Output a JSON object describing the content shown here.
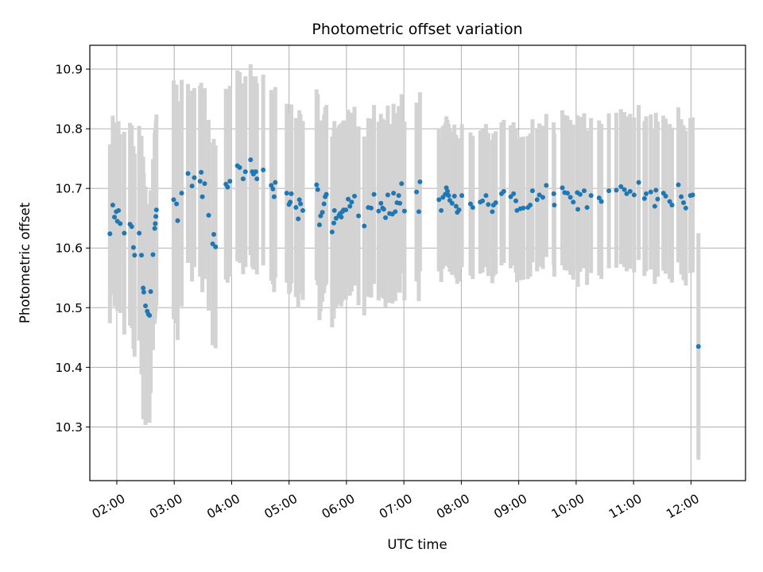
{
  "chart_data": {
    "type": "scatter",
    "title": "Photometric offset variation",
    "xlabel": "UTC time",
    "ylabel": "Photometric offset",
    "x_unit": "hours UTC",
    "xlim": [
      1.53,
      12.95
    ],
    "ylim": [
      10.21,
      10.94
    ],
    "x_ticks": [
      {
        "value": 2,
        "label": "02:00"
      },
      {
        "value": 3,
        "label": "03:00"
      },
      {
        "value": 4,
        "label": "04:00"
      },
      {
        "value": 5,
        "label": "05:00"
      },
      {
        "value": 6,
        "label": "06:00"
      },
      {
        "value": 7,
        "label": "07:00"
      },
      {
        "value": 8,
        "label": "08:00"
      },
      {
        "value": 9,
        "label": "09:00"
      },
      {
        "value": 10,
        "label": "10:00"
      },
      {
        "value": 11,
        "label": "11:00"
      },
      {
        "value": 12,
        "label": "12:00"
      }
    ],
    "y_ticks": [
      {
        "value": 10.3,
        "label": "10.3"
      },
      {
        "value": 10.4,
        "label": "10.4"
      },
      {
        "value": 10.5,
        "label": "10.5"
      },
      {
        "value": 10.6,
        "label": "10.6"
      },
      {
        "value": 10.7,
        "label": "10.7"
      },
      {
        "value": 10.8,
        "label": "10.8"
      },
      {
        "value": 10.9,
        "label": "10.9"
      }
    ],
    "grid": true,
    "colors": {
      "point": "#1f77b4",
      "errorbar": "#d3d3d3",
      "grid": "#b0b0b0"
    },
    "points": [
      [
        1.88,
        10.624,
        0.15
      ],
      [
        1.93,
        10.672,
        0.15
      ],
      [
        1.96,
        10.652,
        0.15
      ],
      [
        1.99,
        10.661,
        0.15
      ],
      [
        2.01,
        10.645,
        0.15
      ],
      [
        2.03,
        10.663,
        0.15
      ],
      [
        2.06,
        10.641,
        0.15
      ],
      [
        2.13,
        10.625,
        0.17
      ],
      [
        2.23,
        10.64,
        0.17
      ],
      [
        2.26,
        10.636,
        0.17
      ],
      [
        2.29,
        10.601,
        0.17
      ],
      [
        2.31,
        10.588,
        0.17
      ],
      [
        2.39,
        10.625,
        0.18
      ],
      [
        2.43,
        10.588,
        0.2
      ],
      [
        2.46,
        10.533,
        0.22
      ],
      [
        2.47,
        10.526,
        0.2
      ],
      [
        2.5,
        10.503,
        0.2
      ],
      [
        2.53,
        10.494,
        0.18
      ],
      [
        2.55,
        10.489,
        0.18
      ],
      [
        2.57,
        10.487,
        0.18
      ],
      [
        2.59,
        10.527,
        0.17
      ],
      [
        2.63,
        10.589,
        0.16
      ],
      [
        2.66,
        10.633,
        0.16
      ],
      [
        2.67,
        10.641,
        0.16
      ],
      [
        2.68,
        10.653,
        0.16
      ],
      [
        2.69,
        10.664,
        0.16
      ],
      [
        2.99,
        10.681,
        0.2
      ],
      [
        3.04,
        10.674,
        0.2
      ],
      [
        3.06,
        10.646,
        0.2
      ],
      [
        3.13,
        10.692,
        0.19
      ],
      [
        3.24,
        10.725,
        0.15
      ],
      [
        3.31,
        10.704,
        0.16
      ],
      [
        3.35,
        10.718,
        0.15
      ],
      [
        3.45,
        10.712,
        0.16
      ],
      [
        3.47,
        10.727,
        0.15
      ],
      [
        3.49,
        10.686,
        0.16
      ],
      [
        3.53,
        10.708,
        0.16
      ],
      [
        3.6,
        10.655,
        0.16
      ],
      [
        3.67,
        10.607,
        0.17
      ],
      [
        3.69,
        10.623,
        0.16
      ],
      [
        3.72,
        10.602,
        0.17
      ],
      [
        3.9,
        10.707,
        0.16
      ],
      [
        3.93,
        10.702,
        0.16
      ],
      [
        3.97,
        10.712,
        0.16
      ],
      [
        4.1,
        10.738,
        0.16
      ],
      [
        4.14,
        10.735,
        0.16
      ],
      [
        4.2,
        10.716,
        0.16
      ],
      [
        4.24,
        10.728,
        0.16
      ],
      [
        4.33,
        10.748,
        0.16
      ],
      [
        4.36,
        10.728,
        0.16
      ],
      [
        4.38,
        10.724,
        0.16
      ],
      [
        4.42,
        10.728,
        0.16
      ],
      [
        4.44,
        10.716,
        0.16
      ],
      [
        4.55,
        10.731,
        0.16
      ],
      [
        4.69,
        10.705,
        0.16
      ],
      [
        4.72,
        10.699,
        0.16
      ],
      [
        4.74,
        10.686,
        0.16
      ],
      [
        4.76,
        10.71,
        0.16
      ],
      [
        4.96,
        10.692,
        0.15
      ],
      [
        5.0,
        10.673,
        0.15
      ],
      [
        5.02,
        10.677,
        0.15
      ],
      [
        5.04,
        10.691,
        0.15
      ],
      [
        5.12,
        10.668,
        0.15
      ],
      [
        5.16,
        10.649,
        0.15
      ],
      [
        5.18,
        10.681,
        0.15
      ],
      [
        5.2,
        10.674,
        0.15
      ],
      [
        5.24,
        10.663,
        0.15
      ],
      [
        5.48,
        10.706,
        0.16
      ],
      [
        5.5,
        10.698,
        0.16
      ],
      [
        5.53,
        10.639,
        0.16
      ],
      [
        5.55,
        10.654,
        0.16
      ],
      [
        5.58,
        10.66,
        0.15
      ],
      [
        5.61,
        10.674,
        0.15
      ],
      [
        5.63,
        10.686,
        0.15
      ],
      [
        5.65,
        10.69,
        0.15
      ],
      [
        5.75,
        10.627,
        0.16
      ],
      [
        5.78,
        10.642,
        0.16
      ],
      [
        5.79,
        10.663,
        0.15
      ],
      [
        5.82,
        10.65,
        0.15
      ],
      [
        5.87,
        10.655,
        0.15
      ],
      [
        5.89,
        10.658,
        0.15
      ],
      [
        5.91,
        10.652,
        0.15
      ],
      [
        5.93,
        10.661,
        0.15
      ],
      [
        5.95,
        10.664,
        0.15
      ],
      [
        5.99,
        10.664,
        0.15
      ],
      [
        6.03,
        10.682,
        0.15
      ],
      [
        6.06,
        10.67,
        0.15
      ],
      [
        6.09,
        10.677,
        0.15
      ],
      [
        6.14,
        10.687,
        0.15
      ],
      [
        6.21,
        10.654,
        0.15
      ],
      [
        6.31,
        10.637,
        0.15
      ],
      [
        6.38,
        10.668,
        0.15
      ],
      [
        6.43,
        10.667,
        0.15
      ],
      [
        6.48,
        10.69,
        0.15
      ],
      [
        6.56,
        10.662,
        0.15
      ],
      [
        6.6,
        10.675,
        0.15
      ],
      [
        6.63,
        10.667,
        0.15
      ],
      [
        6.65,
        10.665,
        0.15
      ],
      [
        6.68,
        10.651,
        0.15
      ],
      [
        6.72,
        10.689,
        0.15
      ],
      [
        6.75,
        10.658,
        0.15
      ],
      [
        6.8,
        10.657,
        0.15
      ],
      [
        6.82,
        10.692,
        0.15
      ],
      [
        6.85,
        10.661,
        0.15
      ],
      [
        6.88,
        10.676,
        0.15
      ],
      [
        6.91,
        10.688,
        0.15
      ],
      [
        6.93,
        10.675,
        0.15
      ],
      [
        6.96,
        10.708,
        0.15
      ],
      [
        7.01,
        10.662,
        0.15
      ],
      [
        7.22,
        10.694,
        0.15
      ],
      [
        7.26,
        10.661,
        0.15
      ],
      [
        7.28,
        10.711,
        0.15
      ],
      [
        7.61,
        10.681,
        0.12
      ],
      [
        7.65,
        10.663,
        0.12
      ],
      [
        7.68,
        10.685,
        0.12
      ],
      [
        7.72,
        10.69,
        0.12
      ],
      [
        7.74,
        10.701,
        0.12
      ],
      [
        7.76,
        10.695,
        0.12
      ],
      [
        7.78,
        10.688,
        0.12
      ],
      [
        7.8,
        10.68,
        0.12
      ],
      [
        7.84,
        10.675,
        0.12
      ],
      [
        7.88,
        10.687,
        0.12
      ],
      [
        7.91,
        10.67,
        0.12
      ],
      [
        7.93,
        10.66,
        0.12
      ],
      [
        7.96,
        10.664,
        0.12
      ],
      [
        8.01,
        10.688,
        0.12
      ],
      [
        8.16,
        10.674,
        0.12
      ],
      [
        8.2,
        10.668,
        0.12
      ],
      [
        8.33,
        10.677,
        0.12
      ],
      [
        8.37,
        10.679,
        0.12
      ],
      [
        8.43,
        10.688,
        0.12
      ],
      [
        8.47,
        10.673,
        0.12
      ],
      [
        8.54,
        10.661,
        0.12
      ],
      [
        8.56,
        10.672,
        0.12
      ],
      [
        8.6,
        10.676,
        0.12
      ],
      [
        8.7,
        10.691,
        0.12
      ],
      [
        8.74,
        10.695,
        0.12
      ],
      [
        8.86,
        10.686,
        0.12
      ],
      [
        8.91,
        10.691,
        0.12
      ],
      [
        8.95,
        10.679,
        0.12
      ],
      [
        8.97,
        10.663,
        0.12
      ],
      [
        9.03,
        10.666,
        0.12
      ],
      [
        9.08,
        10.667,
        0.12
      ],
      [
        9.16,
        10.668,
        0.12
      ],
      [
        9.2,
        10.672,
        0.12
      ],
      [
        9.24,
        10.696,
        0.12
      ],
      [
        9.32,
        10.681,
        0.12
      ],
      [
        9.36,
        10.689,
        0.12
      ],
      [
        9.42,
        10.685,
        0.12
      ],
      [
        9.48,
        10.705,
        0.12
      ],
      [
        9.61,
        10.691,
        0.12
      ],
      [
        9.62,
        10.672,
        0.12
      ],
      [
        9.76,
        10.701,
        0.13
      ],
      [
        9.8,
        10.693,
        0.13
      ],
      [
        9.85,
        10.692,
        0.13
      ],
      [
        9.9,
        10.685,
        0.13
      ],
      [
        9.95,
        10.677,
        0.13
      ],
      [
        10.02,
        10.693,
        0.13
      ],
      [
        10.03,
        10.665,
        0.13
      ],
      [
        10.07,
        10.69,
        0.13
      ],
      [
        10.14,
        10.696,
        0.13
      ],
      [
        10.19,
        10.668,
        0.13
      ],
      [
        10.26,
        10.688,
        0.13
      ],
      [
        10.4,
        10.684,
        0.13
      ],
      [
        10.44,
        10.678,
        0.13
      ],
      [
        10.57,
        10.696,
        0.13
      ],
      [
        10.7,
        10.697,
        0.13
      ],
      [
        10.78,
        10.703,
        0.13
      ],
      [
        10.84,
        10.698,
        0.13
      ],
      [
        10.88,
        10.691,
        0.13
      ],
      [
        10.94,
        10.695,
        0.13
      ],
      [
        11.01,
        10.689,
        0.13
      ],
      [
        11.09,
        10.71,
        0.13
      ],
      [
        11.19,
        10.683,
        0.13
      ],
      [
        11.22,
        10.691,
        0.13
      ],
      [
        11.3,
        10.694,
        0.13
      ],
      [
        11.37,
        10.67,
        0.13
      ],
      [
        11.39,
        10.697,
        0.13
      ],
      [
        11.42,
        10.682,
        0.13
      ],
      [
        11.52,
        10.692,
        0.13
      ],
      [
        11.56,
        10.687,
        0.13
      ],
      [
        11.63,
        10.678,
        0.13
      ],
      [
        11.67,
        10.672,
        0.13
      ],
      [
        11.78,
        10.706,
        0.13
      ],
      [
        11.83,
        10.686,
        0.13
      ],
      [
        11.87,
        10.676,
        0.13
      ],
      [
        11.91,
        10.667,
        0.13
      ],
      [
        11.99,
        10.688,
        0.13
      ],
      [
        12.03,
        10.689,
        0.13
      ],
      [
        12.13,
        10.435,
        0.19
      ]
    ]
  }
}
